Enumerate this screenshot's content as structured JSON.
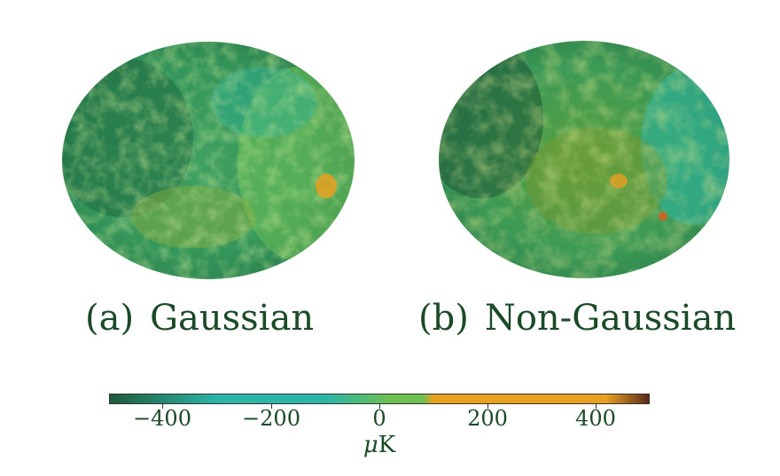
{
  "panels": [
    {
      "label": "(a)",
      "title": "Gaussian"
    },
    {
      "label": "(b)",
      "title": "Non-Gaussian"
    }
  ],
  "colorbar": {
    "ticks": [
      "−400",
      "−200",
      "0",
      "200",
      "400"
    ],
    "unit_symbol": "μ",
    "unit_letter": "K",
    "colors": [
      "#1f5a3a",
      "#2bb6a8",
      "#6cc050",
      "#e8a020",
      "#5a2a1a"
    ]
  }
}
